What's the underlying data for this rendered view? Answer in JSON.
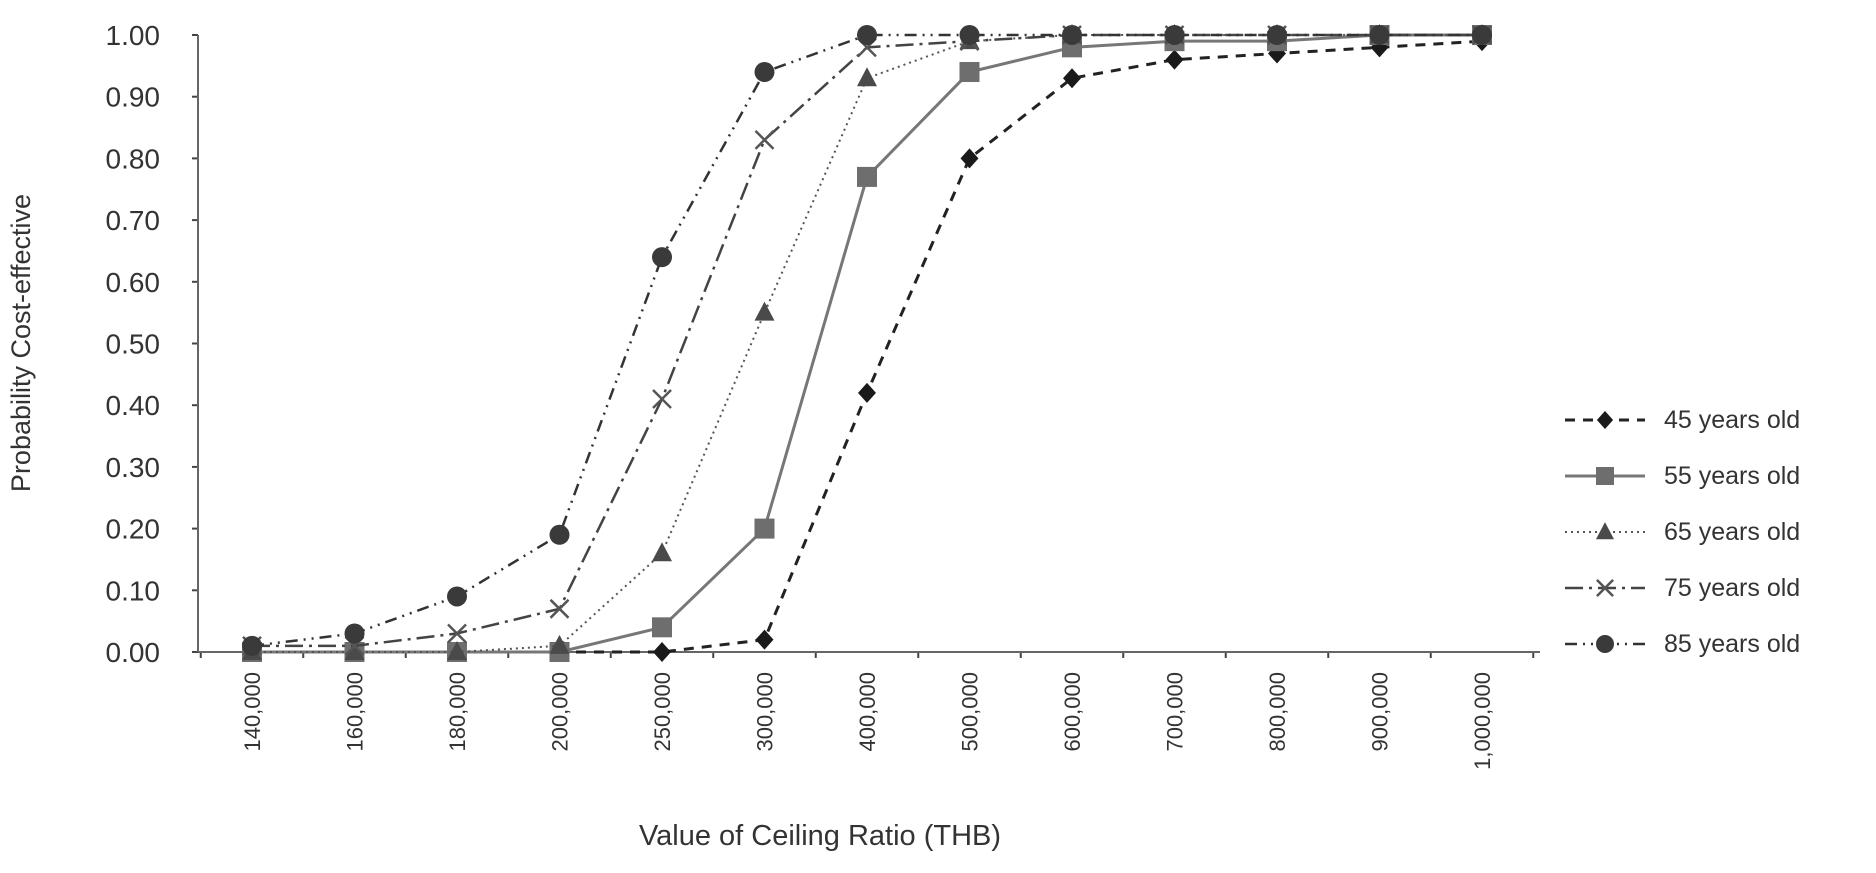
{
  "chart_data": {
    "type": "line",
    "title": "",
    "xlabel": "Value of Ceiling Ratio (THB)",
    "ylabel": "Probability Cost-effective",
    "ylim": [
      0,
      1
    ],
    "yticks": [
      "0.00",
      "0.10",
      "0.20",
      "0.30",
      "0.40",
      "0.50",
      "0.60",
      "0.70",
      "0.80",
      "0.90",
      "1.00"
    ],
    "categories": [
      "140,000",
      "160,000",
      "180,000",
      "200,000",
      "250,000",
      "300,000",
      "400,000",
      "500,000",
      "600,000",
      "700,000",
      "800,000",
      "900,000",
      "1,000,000"
    ],
    "grid": false,
    "legend_position": "right",
    "series": [
      {
        "name": "45 years old",
        "marker": "diamond",
        "dash": "10,8",
        "color": "#222222",
        "width": 3,
        "values": [
          0,
          0,
          0,
          0,
          0,
          0.02,
          0.42,
          0.8,
          0.93,
          0.96,
          0.97,
          0.98,
          0.99
        ]
      },
      {
        "name": "55 years old",
        "marker": "square",
        "dash": "",
        "color": "#777777",
        "width": 3,
        "values": [
          0,
          0,
          0,
          0,
          0.04,
          0.2,
          0.77,
          0.94,
          0.98,
          0.99,
          0.99,
          1.0,
          1.0
        ]
      },
      {
        "name": "65 years old",
        "marker": "triangle",
        "dash": "2,4",
        "color": "#555555",
        "width": 2,
        "values": [
          0,
          0,
          0,
          0.01,
          0.16,
          0.55,
          0.93,
          0.99,
          1.0,
          1.0,
          1.0,
          1.0,
          1.0
        ]
      },
      {
        "name": "75 years old",
        "marker": "x",
        "dash": "18,6,3,6",
        "color": "#444444",
        "width": 2.5,
        "values": [
          0.01,
          0.01,
          0.03,
          0.07,
          0.41,
          0.83,
          0.98,
          0.99,
          1.0,
          1.0,
          1.0,
          1.0,
          1.0
        ]
      },
      {
        "name": "85 years old",
        "marker": "circle",
        "dash": "12,6,2,6,2,6",
        "color": "#333333",
        "width": 2.5,
        "values": [
          0.01,
          0.03,
          0.09,
          0.19,
          0.64,
          0.94,
          1.0,
          1.0,
          1.0,
          1.0,
          1.0,
          1.0,
          1.0
        ]
      }
    ]
  }
}
